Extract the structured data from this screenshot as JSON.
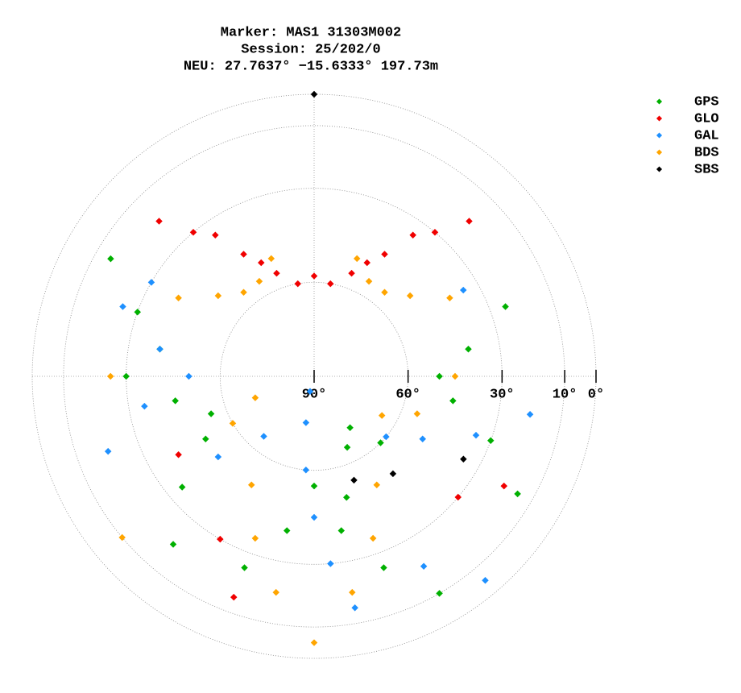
{
  "chart_data": {
    "type": "skyplot",
    "title": "Marker: MAS1 31303M002",
    "subtitle": "Session: 25/202/0",
    "annotation": "NEU: 27.7637° −15.6333° 197.73m",
    "rlim": [
      0,
      90
    ],
    "rticks": [
      {
        "value": 90,
        "label": "90°"
      },
      {
        "value": 60,
        "label": "60°"
      },
      {
        "value": 30,
        "label": "30°"
      },
      {
        "value": 10,
        "label": "10°"
      },
      {
        "value": 0,
        "label": "0°"
      }
    ],
    "grid": true,
    "legend": "upper right",
    "series": [
      {
        "name": "GPS",
        "color": "#00b000",
        "azimuth": [
          150,
          160,
          170,
          180,
          190,
          200,
          120,
          110,
          100,
          90,
          80,
          70,
          220,
          230,
          240,
          250,
          260,
          270,
          300,
          290,
          280,
          135,
          145,
          155,
          165
        ],
        "elevation": [
          10,
          25,
          40,
          55,
          40,
          25,
          15,
          30,
          45,
          50,
          40,
          25,
          20,
          35,
          50,
          55,
          45,
          30,
          15,
          30,
          40,
          60,
          70,
          65,
          50
        ]
      },
      {
        "name": "GLO",
        "color": "#f00000",
        "azimuth": [
          320,
          330,
          340,
          350,
          0,
          10,
          20,
          30,
          40,
          315,
          325,
          335,
          25,
          35,
          45,
          200,
          210,
          120,
          130,
          240
        ],
        "elevation": [
          30,
          45,
          55,
          60,
          58,
          60,
          55,
          45,
          30,
          20,
          35,
          50,
          50,
          35,
          20,
          15,
          30,
          20,
          30,
          40
        ]
      },
      {
        "name": "GAL",
        "color": "#1e90ff",
        "azimuth": [
          170,
          175,
          180,
          185,
          190,
          195,
          100,
          110,
          120,
          130,
          250,
          260,
          270,
          280,
          290,
          140,
          150,
          220,
          230,
          60,
          300
        ],
        "elevation": [
          15,
          30,
          45,
          60,
          75,
          85,
          20,
          35,
          50,
          60,
          20,
          35,
          50,
          40,
          25,
          5,
          20,
          65,
          50,
          35,
          30
        ]
      },
      {
        "name": "BDS",
        "color": "#ffa500",
        "azimuth": [
          300,
          310,
          320,
          330,
          340,
          20,
          30,
          40,
          50,
          60,
          180,
          190,
          200,
          210,
          150,
          160,
          170,
          240,
          250,
          120,
          110,
          90,
          270,
          230
        ],
        "elevation": [
          40,
          50,
          55,
          55,
          50,
          50,
          55,
          55,
          50,
          40,
          5,
          20,
          35,
          50,
          50,
          35,
          20,
          60,
          70,
          65,
          55,
          45,
          25,
          10
        ]
      },
      {
        "name": "SBS",
        "color": "#000000",
        "azimuth": [
          0,
          159,
          141,
          119
        ],
        "elevation": [
          0,
          54.5,
          50,
          35.5
        ]
      }
    ]
  }
}
